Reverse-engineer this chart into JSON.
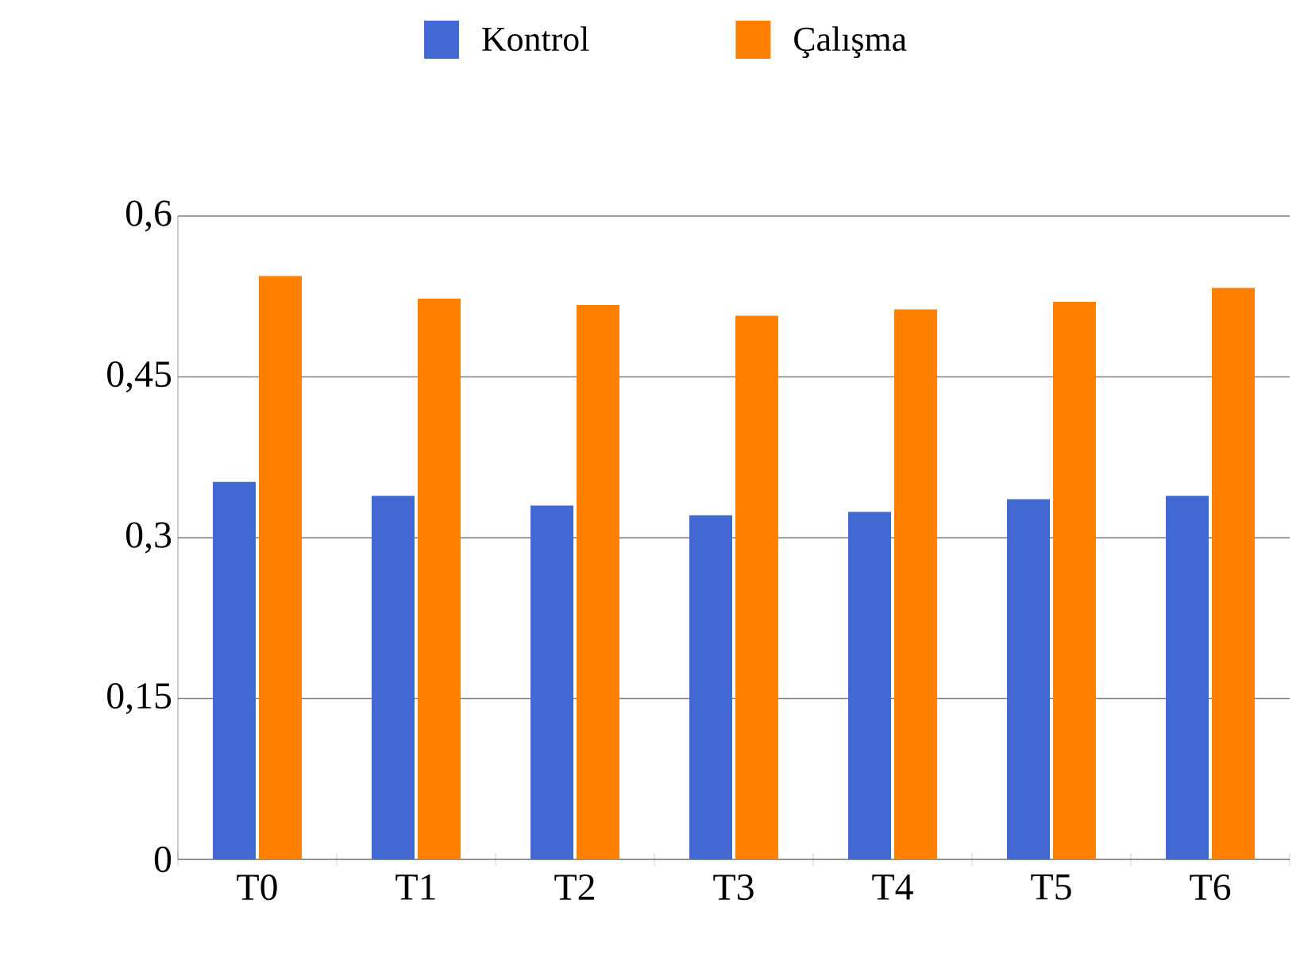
{
  "chart_data": {
    "type": "bar",
    "categories": [
      "T0",
      "T1",
      "T2",
      "T3",
      "T4",
      "T5",
      "T6"
    ],
    "series": [
      {
        "name": "Kontrol",
        "color": "#4169d1",
        "values": [
          0.352,
          0.339,
          0.33,
          0.321,
          0.324,
          0.336,
          0.339
        ]
      },
      {
        "name": "Çalışma",
        "color": "#ff7f00",
        "values": [
          0.544,
          0.523,
          0.517,
          0.507,
          0.513,
          0.52,
          0.533
        ]
      }
    ],
    "ylim": [
      0,
      0.6
    ],
    "yticks": [
      0,
      {
        "value": 0.15,
        "label": "0,15"
      },
      {
        "value": 0.3,
        "label": "0,3"
      },
      {
        "value": 0.45,
        "label": "0,45"
      },
      {
        "value": 0.6,
        "label": "0,6"
      }
    ],
    "grid": "y",
    "legend": "top"
  }
}
